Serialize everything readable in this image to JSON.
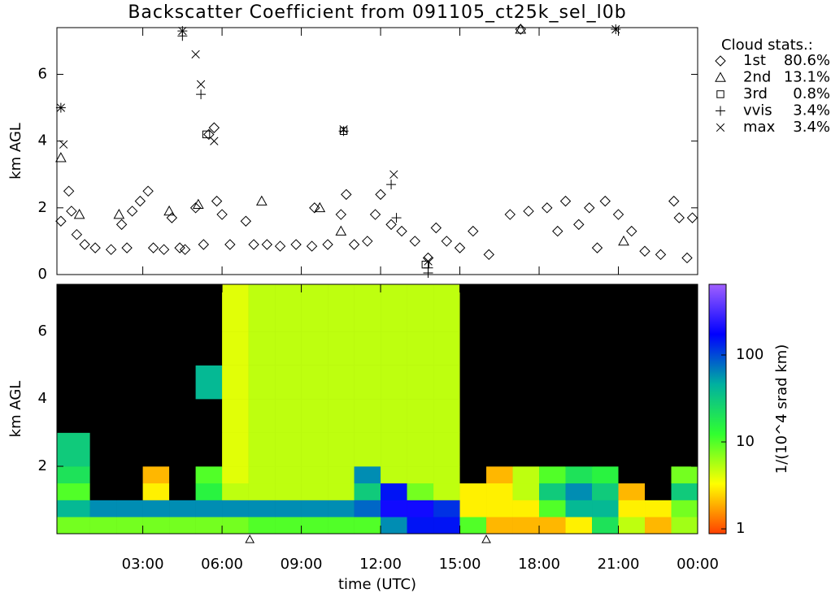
{
  "title": "Backscatter Coefficient from 091105_ct25k_sel_l0b",
  "chart_data": [
    {
      "type": "scatter",
      "ylabel": "km AGL",
      "xlim": [
        -0.25,
        24
      ],
      "ylim": [
        0,
        7.4
      ],
      "yticks": [
        0,
        2,
        4,
        6
      ],
      "legend_title": "Cloud stats.:",
      "legend": "upper right",
      "series": [
        {
          "name": "1st",
          "share": "80.6%",
          "marker": "diamond",
          "color": "#000000",
          "x": [
            -0.1,
            0.2,
            0.3,
            0.5,
            0.8,
            1.2,
            1.8,
            2.2,
            2.4,
            2.6,
            2.9,
            3.2,
            3.4,
            3.8,
            4.1,
            4.4,
            4.6,
            5.0,
            5.3,
            5.5,
            5.7,
            5.8,
            6.0,
            6.3,
            6.9,
            7.2,
            7.7,
            8.2,
            8.8,
            9.4,
            9.5,
            10.0,
            10.5,
            10.7,
            11.0,
            11.5,
            11.8,
            12.0,
            12.4,
            12.8,
            13.3,
            13.8,
            14.1,
            14.5,
            15.0,
            15.5,
            16.1,
            16.9,
            17.3,
            17.6,
            18.3,
            18.7,
            19.0,
            19.5,
            19.9,
            20.2,
            20.5,
            21.0,
            21.5,
            22.0,
            22.6,
            23.1,
            23.3,
            23.6,
            23.8
          ],
          "y": [
            1.6,
            2.5,
            1.9,
            1.2,
            0.9,
            0.8,
            0.75,
            1.5,
            0.8,
            1.9,
            2.2,
            2.5,
            0.8,
            0.75,
            1.7,
            0.8,
            0.75,
            2.0,
            0.9,
            4.2,
            4.4,
            2.2,
            1.8,
            0.9,
            1.6,
            0.9,
            0.9,
            0.85,
            0.9,
            0.85,
            2.0,
            0.9,
            1.8,
            2.4,
            0.9,
            1.0,
            1.8,
            2.4,
            1.5,
            1.3,
            1.0,
            0.5,
            1.4,
            1.0,
            0.8,
            1.3,
            0.6,
            1.8,
            7.35,
            1.9,
            2.0,
            1.3,
            2.2,
            1.5,
            2.0,
            0.8,
            2.2,
            1.8,
            1.3,
            0.7,
            0.6,
            2.2,
            1.7,
            0.5,
            1.7
          ]
        },
        {
          "name": "2nd",
          "share": "13.1%",
          "marker": "triangle",
          "color": "#000000",
          "x": [
            -0.1,
            0.6,
            2.1,
            4.0,
            5.1,
            7.5,
            9.7,
            10.5,
            17.3,
            21.2
          ],
          "y": [
            3.5,
            1.8,
            1.8,
            1.9,
            2.1,
            2.2,
            2.0,
            1.3,
            7.35,
            1.0
          ]
        },
        {
          "name": "3rd",
          "share": "0.8%",
          "marker": "square",
          "color": "#000000",
          "x": [
            5.4,
            10.6,
            13.7
          ],
          "y": [
            4.2,
            4.3,
            0.3
          ]
        },
        {
          "name": "vvis",
          "share": "3.4%",
          "marker": "plus",
          "color": "#000000",
          "x": [
            -0.1,
            4.5,
            4.5,
            5.2,
            10.6,
            12.4,
            12.6,
            13.8,
            13.8,
            20.9
          ],
          "y": [
            5.0,
            7.3,
            7.15,
            5.4,
            4.3,
            2.7,
            1.7,
            0.05,
            0.2,
            7.35
          ]
        },
        {
          "name": "max",
          "share": "3.4%",
          "marker": "cross",
          "color": "#000000",
          "x": [
            -0.1,
            0.0,
            4.5,
            5.0,
            5.2,
            5.7,
            10.6,
            12.5,
            13.8,
            20.9
          ],
          "y": [
            5.0,
            3.9,
            7.3,
            6.6,
            5.7,
            4.0,
            4.35,
            3.0,
            0.4,
            7.35
          ]
        }
      ]
    },
    {
      "type": "heatmap",
      "ylabel": "km AGL",
      "xlabel": "time (UTC)",
      "xlim": [
        -0.25,
        24
      ],
      "ylim": [
        0,
        7.4
      ],
      "yticks": [
        2,
        4,
        6
      ],
      "xticks": [
        {
          "value": 3,
          "label": "03:00"
        },
        {
          "value": 6,
          "label": "06:00"
        },
        {
          "value": 9,
          "label": "09:00"
        },
        {
          "value": 12,
          "label": "12:00"
        },
        {
          "value": 15,
          "label": "15:00"
        },
        {
          "value": 18,
          "label": "18:00"
        },
        {
          "value": 21,
          "label": "21:00"
        },
        {
          "value": 24,
          "label": "00:00"
        }
      ],
      "axis_markers": [
        7.05,
        16.0
      ],
      "x_bins": [
        -0.25,
        1,
        2,
        3,
        4,
        5,
        6,
        7,
        8,
        9,
        10,
        11,
        12,
        13,
        14,
        15,
        16,
        17,
        18,
        19,
        20,
        21,
        22,
        23,
        24
      ],
      "y_bins": [
        0,
        0.5,
        1,
        1.5,
        2,
        3,
        4,
        5,
        6,
        7.4
      ],
      "z": [
        [
          8,
          8,
          8,
          8,
          8,
          8,
          8,
          10,
          10,
          10,
          10,
          10,
          60,
          150,
          150,
          10,
          2,
          2,
          2,
          3,
          20,
          5,
          2,
          6
        ],
        [
          40,
          60,
          60,
          60,
          60,
          60,
          60,
          60,
          60,
          60,
          60,
          80,
          200,
          200,
          120,
          3,
          3,
          3,
          10,
          40,
          40,
          3,
          3,
          8
        ],
        [
          10,
          0,
          0,
          3,
          0,
          15,
          5,
          5,
          5,
          5,
          5,
          30,
          150,
          8,
          5,
          3,
          3,
          5,
          30,
          60,
          30,
          2,
          0,
          30
        ],
        [
          20,
          0,
          0,
          2,
          0,
          10,
          4,
          5,
          5,
          5,
          5,
          60,
          5,
          5,
          5,
          0,
          2,
          5,
          10,
          20,
          15,
          0,
          0,
          8
        ],
        [
          30,
          0,
          0,
          0,
          0,
          0,
          4,
          5,
          5,
          5,
          5,
          5,
          5,
          5,
          5,
          0,
          0,
          0,
          0,
          0,
          0,
          0,
          0,
          0
        ],
        [
          0,
          0,
          0,
          0,
          0,
          0,
          4,
          5,
          5,
          5,
          5,
          5,
          5,
          5,
          5,
          0,
          0,
          0,
          0,
          0,
          0,
          0,
          0,
          0
        ],
        [
          0,
          0,
          0,
          0,
          0,
          40,
          4,
          5,
          5,
          5,
          5,
          5,
          5,
          5,
          5,
          0,
          0,
          0,
          0,
          0,
          0,
          0,
          0,
          0
        ],
        [
          0,
          0,
          0,
          0,
          0,
          0,
          4,
          5,
          5,
          5,
          5,
          5,
          5,
          5,
          5,
          0,
          0,
          0,
          0,
          0,
          0,
          0,
          0,
          0
        ],
        [
          0,
          0,
          0,
          0,
          0,
          0,
          4,
          5,
          5,
          5,
          5,
          5,
          5,
          5,
          5,
          0,
          0,
          0,
          0,
          0,
          0,
          0,
          0,
          0
        ]
      ],
      "clim": [
        0.88,
        650
      ],
      "log_color": true,
      "below_color": "#000000",
      "colormap": [
        "#ff4000",
        "#ffff00",
        "#30ff30",
        "#00b0a0",
        "#0000ff",
        "#a060ff"
      ],
      "colorbar_label": "1/(10^4 srad km)",
      "colorbar_ticks": [
        1,
        10,
        100
      ]
    }
  ]
}
